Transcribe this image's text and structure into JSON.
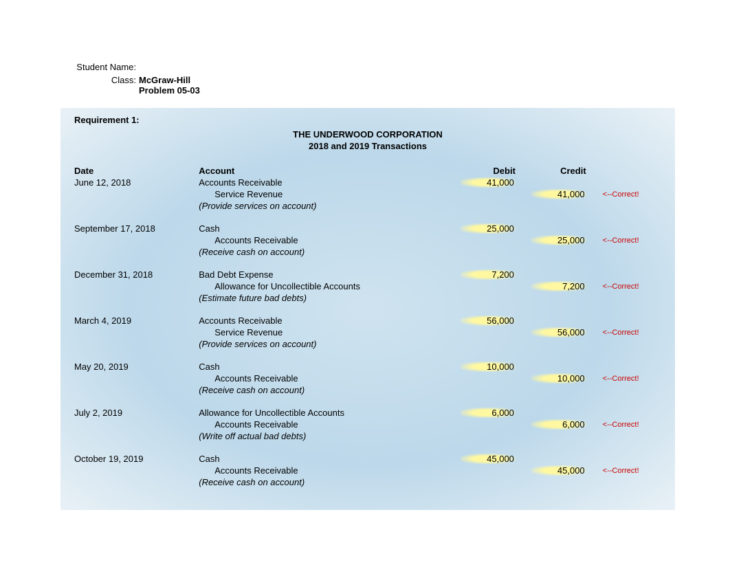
{
  "header": {
    "student_name_label": "Student Name:",
    "student_name_value": "",
    "class_label": "Class:",
    "class_value_line1": "McGraw-Hill",
    "class_value_line2": "Problem 05-03"
  },
  "requirement_label": "Requirement 1:",
  "corp_title": "THE UNDERWOOD CORPORATION",
  "corp_subtitle": "2018 and 2019 Transactions",
  "columns": {
    "date": "Date",
    "account": "Account",
    "debit": "Debit",
    "credit": "Credit"
  },
  "feedback_text": "<--Correct!",
  "entries": [
    {
      "date": "June 12, 2018",
      "lines": [
        {
          "account": "Accounts Receivable",
          "indent": 0,
          "debit": "41,000",
          "credit": "",
          "feedback": ""
        },
        {
          "account": "Service Revenue",
          "indent": 1,
          "debit": "",
          "credit": "41,000",
          "feedback": "<--Correct!"
        }
      ],
      "description": "(Provide services on account)"
    },
    {
      "date": "September 17, 2018",
      "lines": [
        {
          "account": "Cash",
          "indent": 0,
          "debit": "25,000",
          "credit": "",
          "feedback": ""
        },
        {
          "account": "Accounts Receivable",
          "indent": 1,
          "debit": "",
          "credit": "25,000",
          "feedback": "<--Correct!"
        }
      ],
      "description": "(Receive cash on account)"
    },
    {
      "date": "December 31, 2018",
      "lines": [
        {
          "account": "Bad Debt Expense",
          "indent": 0,
          "debit": "7,200",
          "credit": "",
          "feedback": ""
        },
        {
          "account": "Allowance for Uncollectible Accounts",
          "indent": 1,
          "debit": "",
          "credit": "7,200",
          "feedback": "<--Correct!"
        }
      ],
      "description": "(Estimate future bad debts)"
    },
    {
      "date": "March 4, 2019",
      "lines": [
        {
          "account": "Accounts Receivable",
          "indent": 0,
          "debit": "56,000",
          "credit": "",
          "feedback": ""
        },
        {
          "account": "Service Revenue",
          "indent": 1,
          "debit": "",
          "credit": "56,000",
          "feedback": "<--Correct!"
        }
      ],
      "description": "(Provide services on account)"
    },
    {
      "date": "May 20, 2019",
      "lines": [
        {
          "account": "Cash",
          "indent": 0,
          "debit": "10,000",
          "credit": "",
          "feedback": ""
        },
        {
          "account": "Accounts Receivable",
          "indent": 1,
          "debit": "",
          "credit": "10,000",
          "feedback": "<--Correct!"
        }
      ],
      "description": "(Receive cash on account)"
    },
    {
      "date": "July 2, 2019",
      "lines": [
        {
          "account": "Allowance for Uncollectible Accounts",
          "indent": 0,
          "debit": "6,000",
          "credit": "",
          "feedback": ""
        },
        {
          "account": "Accounts Receivable",
          "indent": 1,
          "debit": "",
          "credit": "6,000",
          "feedback": "<--Correct!"
        }
      ],
      "description": "(Write off actual bad debts)"
    },
    {
      "date": "October 19, 2019",
      "lines": [
        {
          "account": "Cash",
          "indent": 0,
          "debit": "45,000",
          "credit": "",
          "feedback": ""
        },
        {
          "account": "Accounts Receivable",
          "indent": 1,
          "debit": "",
          "credit": "45,000",
          "feedback": "<--Correct!"
        }
      ],
      "description": "(Receive cash on account)"
    }
  ]
}
